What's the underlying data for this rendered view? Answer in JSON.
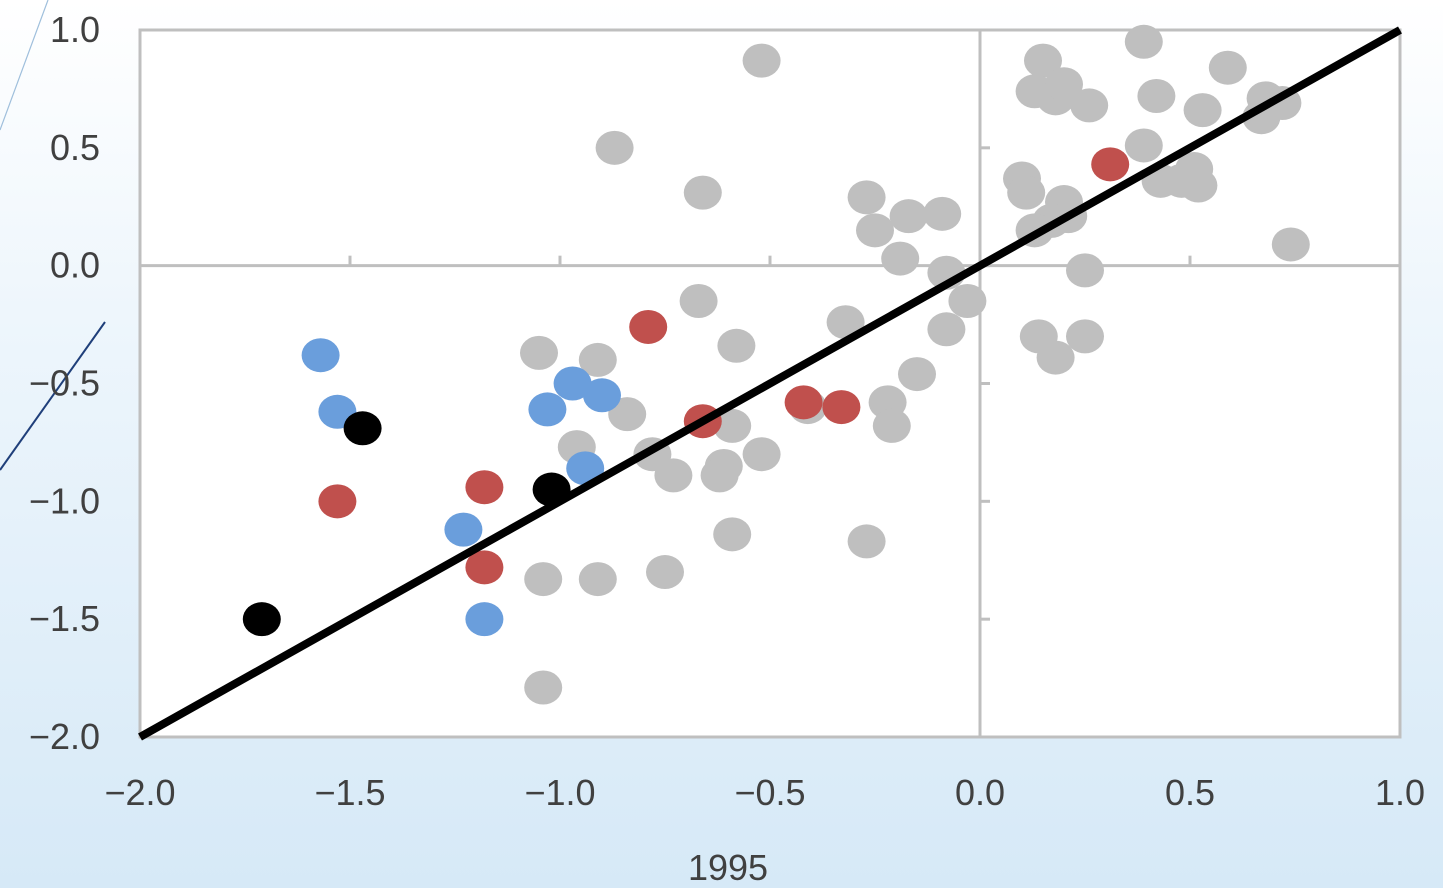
{
  "chart_data": {
    "type": "scatter",
    "title": "",
    "xlabel": "1995",
    "ylabel": "",
    "xlim": [
      -2.0,
      1.0
    ],
    "ylim": [
      -2.0,
      1.0
    ],
    "x_ticks": [
      "−2.0",
      "−1.5",
      "−1.0",
      "−0.5",
      "0.0",
      "0.5",
      "1.0"
    ],
    "y_ticks": [
      "−2.0",
      "−1.5",
      "−1.0",
      "−0.5",
      "0.0",
      "0.5",
      "1.0"
    ],
    "x_tick_values": [
      -2.0,
      -1.5,
      -1.0,
      -0.5,
      0.0,
      0.5,
      1.0
    ],
    "y_tick_values": [
      -2.0,
      -1.5,
      -1.0,
      -0.5,
      0.0,
      0.5,
      1.0
    ],
    "grid": false,
    "reference_lines": {
      "x": 0.0,
      "y": 0.0
    },
    "diagonal": {
      "from": [
        -2.0,
        -2.0
      ],
      "to": [
        1.0,
        1.0
      ],
      "color": "#000000"
    },
    "series": [
      {
        "color": "#bfbfbf",
        "points": [
          [
            -0.52,
            0.87
          ],
          [
            -0.87,
            0.5
          ],
          [
            -0.66,
            0.31
          ],
          [
            -0.27,
            0.29
          ],
          [
            -0.25,
            0.15
          ],
          [
            -0.17,
            0.21
          ],
          [
            -0.09,
            0.22
          ],
          [
            -0.19,
            0.03
          ],
          [
            -0.08,
            -0.03
          ],
          [
            -0.03,
            -0.15
          ],
          [
            -0.67,
            -0.15
          ],
          [
            -0.32,
            -0.24
          ],
          [
            -0.58,
            -0.34
          ],
          [
            -0.08,
            -0.27
          ],
          [
            -0.15,
            -0.46
          ],
          [
            -1.05,
            -0.37
          ],
          [
            -0.91,
            -0.4
          ],
          [
            -0.84,
            -0.63
          ],
          [
            -0.59,
            -0.68
          ],
          [
            -0.41,
            -0.6
          ],
          [
            -0.22,
            -0.58
          ],
          [
            -0.21,
            -0.68
          ],
          [
            -0.96,
            -0.77
          ],
          [
            -0.78,
            -0.8
          ],
          [
            -0.73,
            -0.89
          ],
          [
            -0.61,
            -0.85
          ],
          [
            -0.62,
            -0.89
          ],
          [
            -0.52,
            -0.8
          ],
          [
            -0.59,
            -1.14
          ],
          [
            -0.27,
            -1.17
          ],
          [
            -1.04,
            -1.33
          ],
          [
            -0.91,
            -1.33
          ],
          [
            -0.75,
            -1.3
          ],
          [
            -1.04,
            -1.79
          ],
          [
            0.15,
            0.87
          ],
          [
            0.13,
            0.74
          ],
          [
            0.18,
            0.71
          ],
          [
            0.2,
            0.77
          ],
          [
            0.26,
            0.68
          ],
          [
            0.39,
            0.95
          ],
          [
            0.42,
            0.72
          ],
          [
            0.59,
            0.84
          ],
          [
            0.53,
            0.66
          ],
          [
            0.68,
            0.71
          ],
          [
            0.72,
            0.69
          ],
          [
            0.67,
            0.63
          ],
          [
            0.39,
            0.51
          ],
          [
            0.1,
            0.37
          ],
          [
            0.11,
            0.31
          ],
          [
            0.2,
            0.27
          ],
          [
            0.21,
            0.21
          ],
          [
            0.17,
            0.19
          ],
          [
            0.13,
            0.15
          ],
          [
            0.43,
            0.36
          ],
          [
            0.48,
            0.36
          ],
          [
            0.51,
            0.41
          ],
          [
            0.52,
            0.34
          ],
          [
            0.74,
            0.09
          ],
          [
            0.25,
            -0.02
          ],
          [
            0.14,
            -0.3
          ],
          [
            0.18,
            -0.39
          ],
          [
            0.25,
            -0.3
          ]
        ]
      },
      {
        "color": "#c0504d",
        "points": [
          [
            -0.79,
            -0.26
          ],
          [
            -0.66,
            -0.66
          ],
          [
            -0.42,
            -0.58
          ],
          [
            -0.33,
            -0.6
          ],
          [
            -1.18,
            -0.94
          ],
          [
            -1.53,
            -1.0
          ],
          [
            -1.18,
            -1.28
          ],
          [
            0.31,
            0.43
          ]
        ]
      },
      {
        "color": "#6a9edc",
        "points": [
          [
            -1.57,
            -0.38
          ],
          [
            -1.53,
            -0.62
          ],
          [
            -0.97,
            -0.5
          ],
          [
            -0.9,
            -0.55
          ],
          [
            -1.03,
            -0.61
          ],
          [
            -0.94,
            -0.86
          ],
          [
            -1.23,
            -1.12
          ],
          [
            -1.18,
            -1.5
          ]
        ]
      },
      {
        "color": "#000000",
        "points": [
          [
            -1.47,
            -0.69
          ],
          [
            -1.02,
            -0.95
          ],
          [
            -1.71,
            -1.5
          ]
        ]
      }
    ]
  }
}
